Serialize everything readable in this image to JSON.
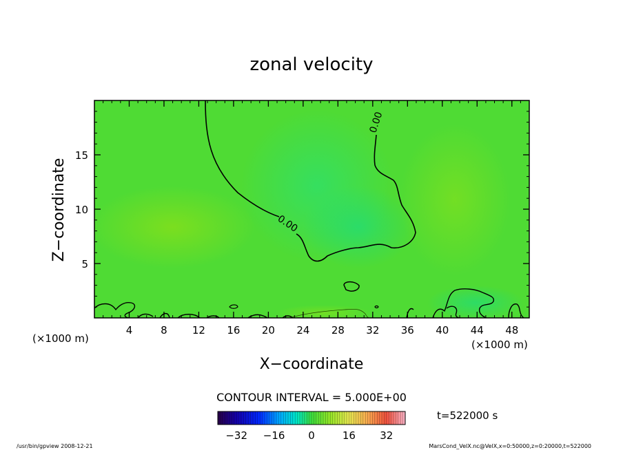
{
  "chart_data": {
    "type": "heatmap",
    "title": "zonal velocity",
    "xlabel": "X−coordinate",
    "ylabel": "Z−coordinate",
    "x_unit": "(×1000 m)",
    "y_unit": "(×1000 m)",
    "xlim": [
      0,
      50
    ],
    "ylim": [
      0,
      20
    ],
    "x_ticks": [
      4,
      8,
      12,
      16,
      20,
      24,
      28,
      32,
      36,
      40,
      44,
      48
    ],
    "y_ticks": [
      5,
      10,
      15
    ],
    "contour_interval": "CONTOUR INTERVAL = 5.000E+00",
    "contour_label": "0.00",
    "contour_levels": [
      0
    ],
    "colorbar": {
      "range": [
        -40,
        40
      ],
      "ticks": [
        -32,
        -16,
        0,
        16,
        32
      ],
      "tick_labels": [
        "−32",
        "−16",
        "0",
        "16",
        "32"
      ]
    },
    "time_label": "t=522000 s",
    "footer_left": "/usr/bin/gpview   2008-12-21",
    "footer_right": "MarsCond_VelX.nc@VelX,x=0:50000,z=0:20000,t=522000"
  }
}
